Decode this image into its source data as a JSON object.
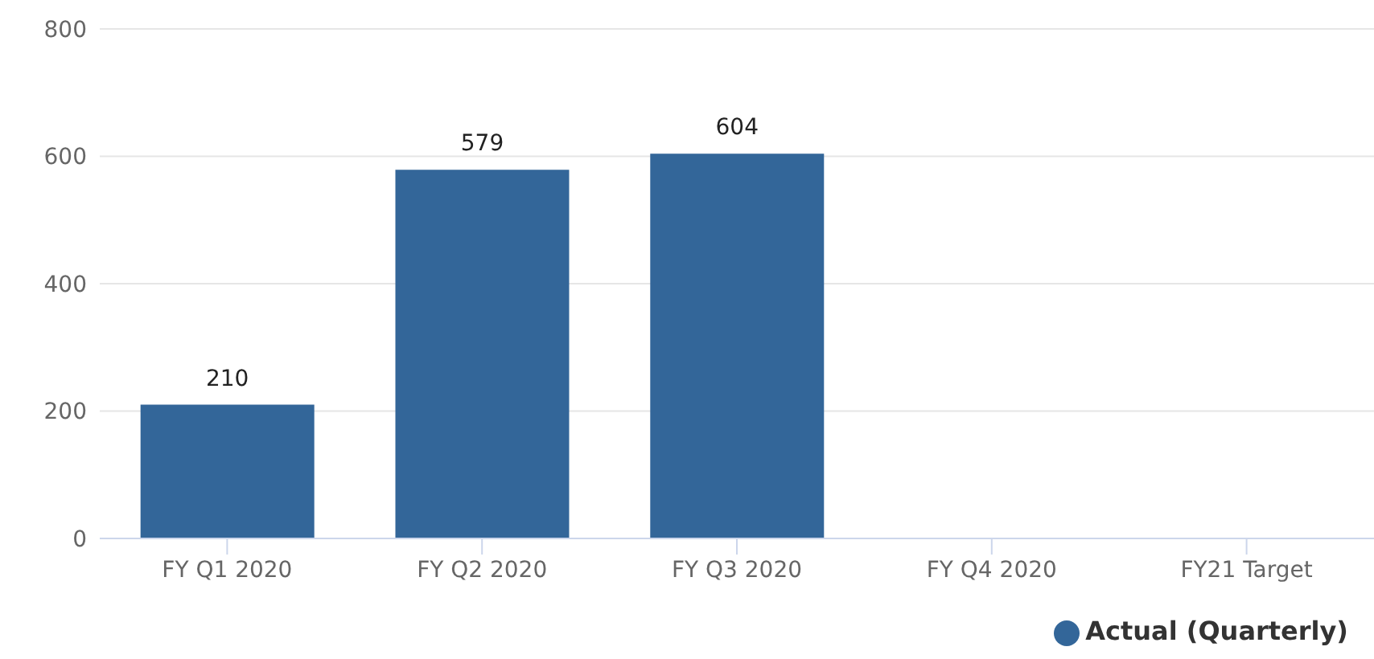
{
  "chart_data": {
    "type": "bar",
    "categories": [
      "FY Q1 2020",
      "FY Q2 2020",
      "FY Q3 2020",
      "FY Q4 2020",
      "FY21 Target"
    ],
    "series": [
      {
        "name": "Actual (Quarterly)",
        "color": "#336699",
        "values": [
          210,
          579,
          604,
          null,
          null
        ]
      }
    ],
    "ylim": [
      0,
      800
    ],
    "yticks": [
      0,
      200,
      400,
      600,
      800
    ],
    "grid": "y",
    "legend": "bottom right",
    "data_labels": true
  }
}
